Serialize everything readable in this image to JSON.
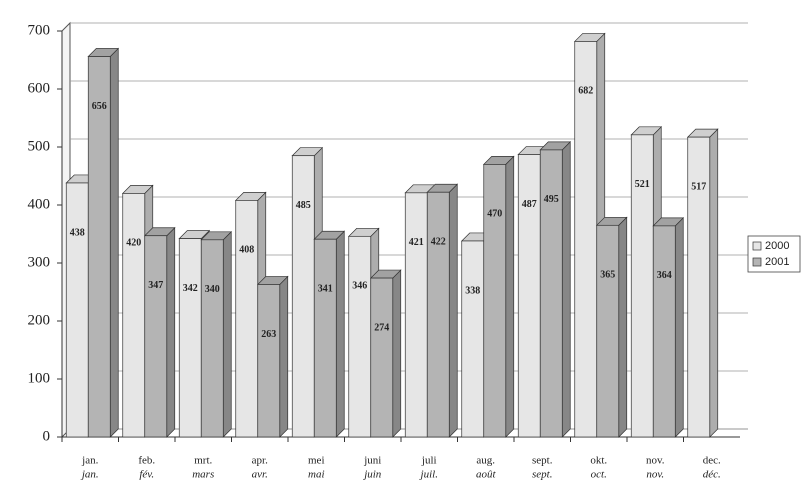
{
  "chart_data": {
    "type": "bar3d",
    "categories": [
      "jan.",
      "feb.",
      "mrt.",
      "apr.",
      "mei",
      "juni",
      "juli",
      "aug.",
      "sept.",
      "okt.",
      "nov.",
      "dec."
    ],
    "categories_fr": [
      "jan.",
      "fév.",
      "mars",
      "avr.",
      "mai",
      "juin",
      "juil.",
      "août",
      "sept.",
      "oct.",
      "nov.",
      "déc."
    ],
    "series": [
      {
        "name": "2000",
        "color": "#e6e6e6",
        "values": [
          438,
          420,
          342,
          408,
          485,
          346,
          421,
          338,
          487,
          682,
          521,
          517
        ]
      },
      {
        "name": "2001",
        "color": "#b4b4b4",
        "values": [
          656,
          347,
          340,
          263,
          341,
          274,
          422,
          470,
          495,
          365,
          364,
          null
        ]
      }
    ],
    "ylim": [
      0,
      700
    ],
    "yticks": [
      0,
      100,
      200,
      300,
      400,
      500,
      600,
      700
    ],
    "grid": true,
    "legend": "right"
  }
}
